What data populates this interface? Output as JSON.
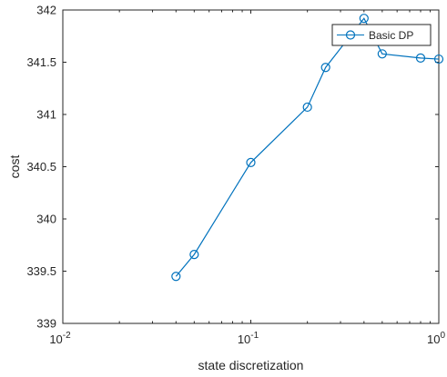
{
  "chart_data": {
    "type": "line",
    "xscale": "log",
    "xlim": [
      0.01,
      1
    ],
    "ylim": [
      339,
      342
    ],
    "xlabel": "state discretization",
    "ylabel": "cost",
    "title": "",
    "grid": false,
    "legend_position": "top-right",
    "x_ticks": [
      {
        "value": 0.01,
        "base": "10",
        "exp": "-2"
      },
      {
        "value": 0.1,
        "base": "10",
        "exp": "-1"
      },
      {
        "value": 1,
        "base": "10",
        "exp": "0"
      }
    ],
    "y_ticks": [
      {
        "value": 339,
        "label": "339"
      },
      {
        "value": 339.5,
        "label": "339.5"
      },
      {
        "value": 340,
        "label": "340"
      },
      {
        "value": 340.5,
        "label": "340.5"
      },
      {
        "value": 341,
        "label": "341"
      },
      {
        "value": 341.5,
        "label": "341.5"
      },
      {
        "value": 342,
        "label": "342"
      }
    ],
    "series": [
      {
        "name": "Basic DP",
        "color": "#0072BD",
        "marker": "circle",
        "x": [
          0.04,
          0.05,
          0.1,
          0.2,
          0.25,
          0.4,
          0.5,
          0.8,
          1.0
        ],
        "y": [
          339.45,
          339.66,
          340.54,
          341.07,
          341.45,
          341.92,
          341.58,
          341.54,
          341.53
        ]
      }
    ]
  }
}
